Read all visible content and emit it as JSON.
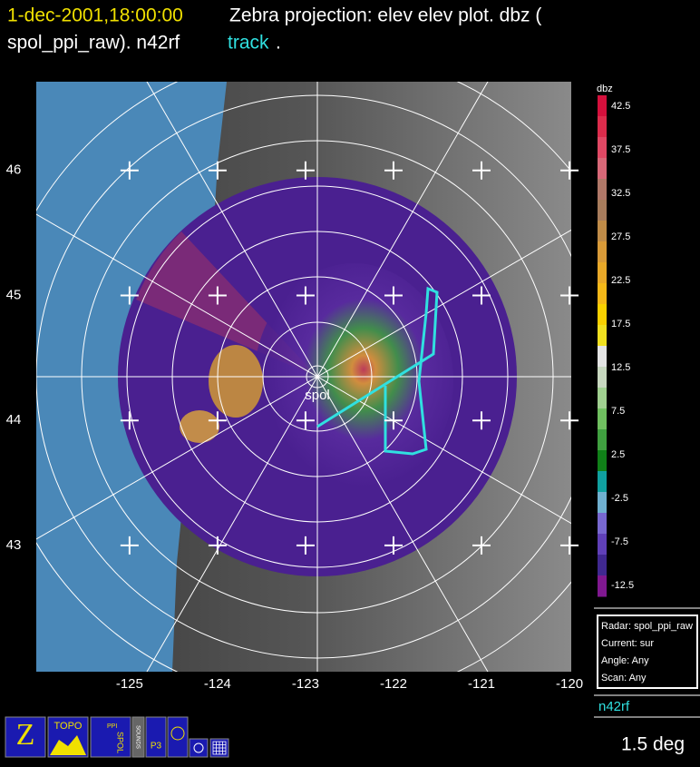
{
  "header": {
    "time": "1-dec-2001,18:00:00",
    "line1": "Zebra projection: elev elev  plot.  dbz (",
    "line2": "spol_ppi_raw).   n42rf",
    "track": "track",
    "end": "."
  },
  "map": {
    "lon_range": [
      -126.06,
      -119.98
    ],
    "lat_range": [
      41.99,
      46.71
    ],
    "lon_ticks": [
      -125,
      -124,
      -123,
      -122,
      -121,
      -120
    ],
    "lat_ticks": [
      46,
      45,
      44,
      43
    ],
    "radar_label": "spol"
  },
  "colorbar": {
    "title": "dbz",
    "labels": [
      42.5,
      37.5,
      32.5,
      27.5,
      22.5,
      17.5,
      12.5,
      7.5,
      2.5,
      -2.5,
      -7.5,
      -12.5
    ],
    "colors": [
      "#d4103c",
      "#dc2c4c",
      "#e04864",
      "#d86878",
      "#b07868",
      "#a87c5c",
      "#c08c48",
      "#d89a38",
      "#e8a828",
      "#f4b818",
      "#f8d000",
      "#f0e020",
      "#e4e4e4",
      "#c8d8c0",
      "#a0d090",
      "#70c060",
      "#40a040",
      "#108018",
      "#10a0a0",
      "#70b0d0",
      "#7868d0",
      "#6040b8",
      "#402890",
      "#801890"
    ]
  },
  "info": {
    "lines": [
      "Radar: spol_ppi_raw",
      "Current: sur",
      "Angle: Any",
      "Scan: Any"
    ],
    "track_name": "n42rf"
  },
  "toolbar": {
    "topo": "TOPO",
    "spol": "SPOL",
    "ppi": "PPI",
    "sounds": "SOUNDS",
    "p3": "P3"
  },
  "status": "1.5 deg"
}
